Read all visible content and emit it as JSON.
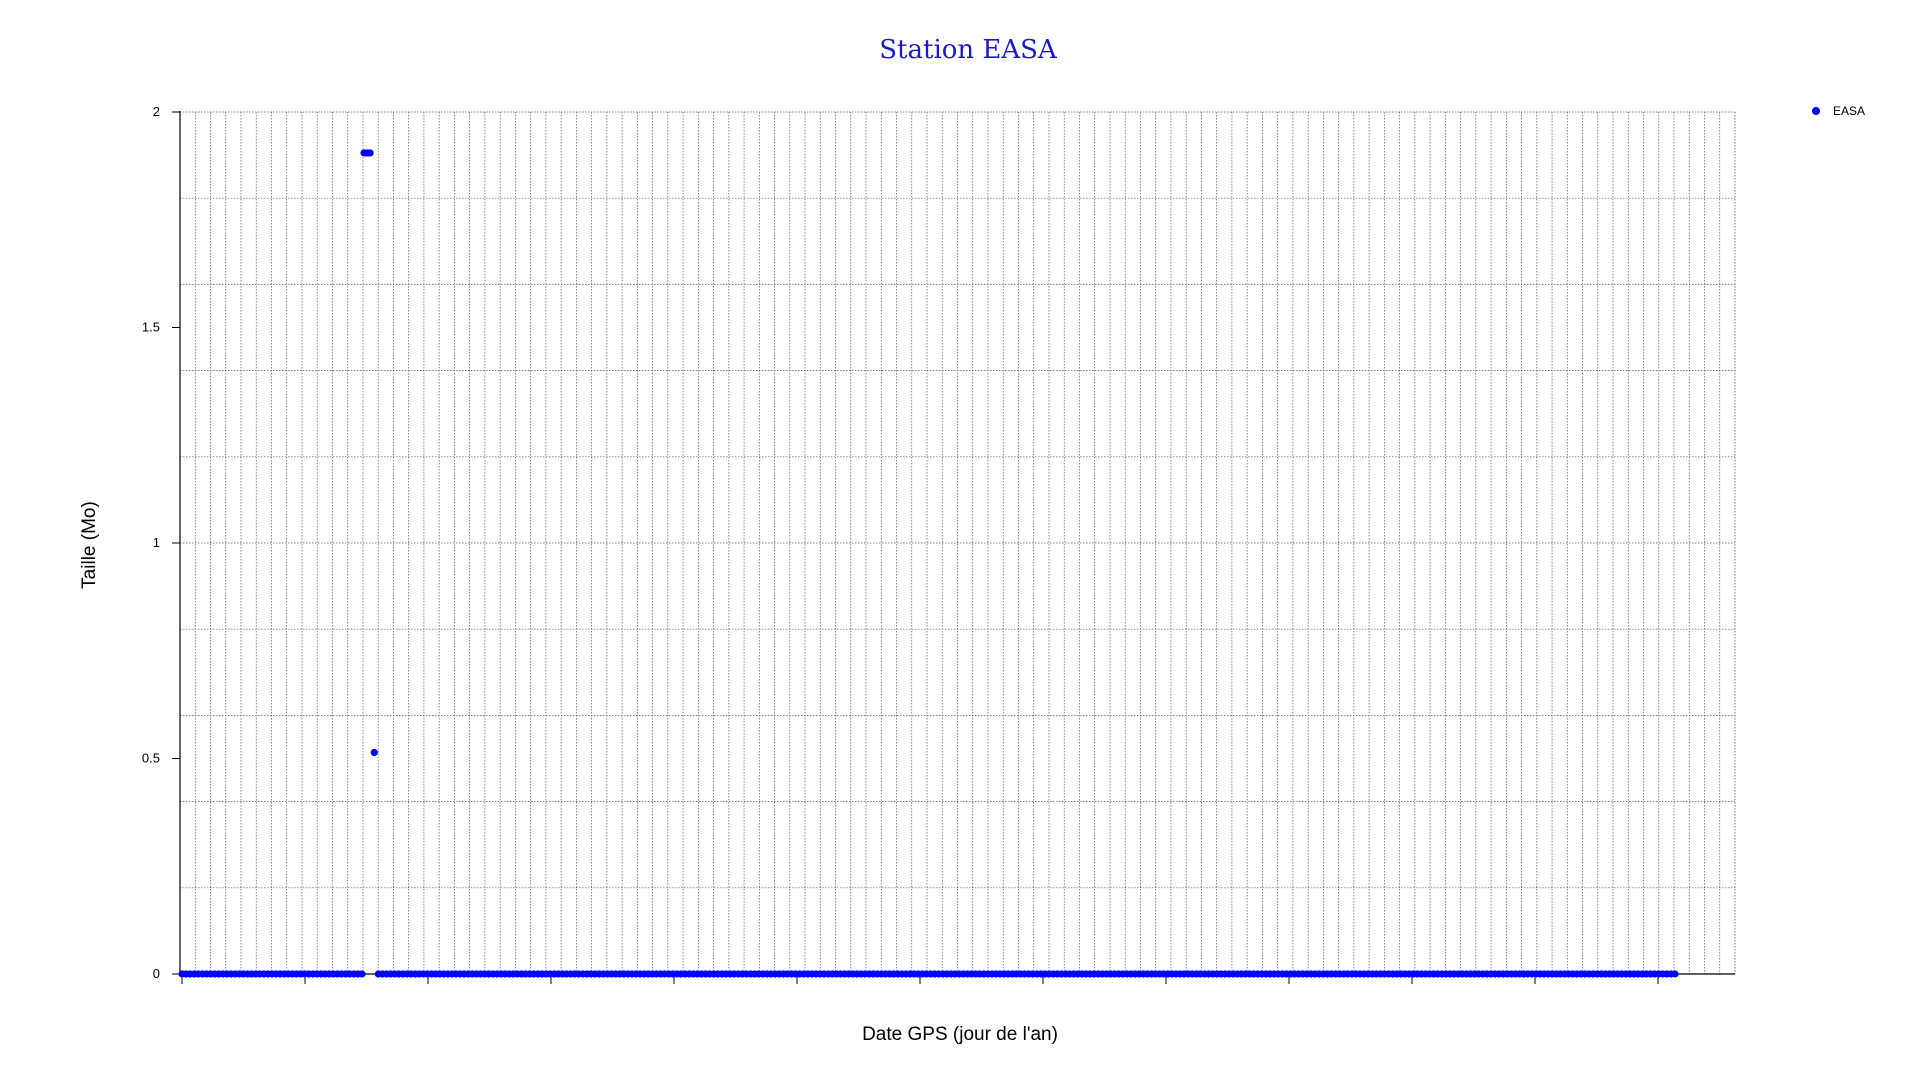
{
  "chart_data": {
    "type": "scatter",
    "title": "Station EASA",
    "xlabel": "Date GPS (jour de l'an)",
    "ylabel": "Taille (Mo)",
    "ylim": [
      0,
      2
    ],
    "yticks": [
      "0",
      "0.5",
      "1",
      "1.5",
      "2"
    ],
    "xlim": [
      1,
      366
    ],
    "xticks_labels_visible": false,
    "grid": true,
    "legend_placement": "top-right",
    "series": [
      {
        "name": "EASA",
        "color": "#0000ff",
        "points": [
          {
            "x_start": 1,
            "x_end": 45,
            "y": 0
          },
          {
            "x": 45.5,
            "y": 1.905
          },
          {
            "x": 46,
            "y": 1.905
          },
          {
            "x": 46.5,
            "y": 1.905
          },
          {
            "x": 47,
            "y": 1.905
          },
          {
            "x": 48,
            "y": 0.514
          },
          {
            "x_start": 49,
            "x_end": 366,
            "y": 0
          }
        ]
      }
    ]
  }
}
